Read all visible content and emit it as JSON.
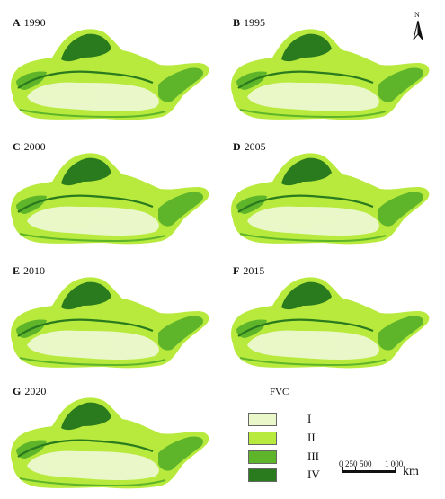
{
  "panels": [
    {
      "letter": "A",
      "year": "1990"
    },
    {
      "letter": "B",
      "year": "1995"
    },
    {
      "letter": "C",
      "year": "2000"
    },
    {
      "letter": "D",
      "year": "2005"
    },
    {
      "letter": "E",
      "year": "2010"
    },
    {
      "letter": "F",
      "year": "2015"
    },
    {
      "letter": "G",
      "year": "2020"
    }
  ],
  "north_arrow": {
    "label": "N"
  },
  "legend": {
    "title": "FVC",
    "classes": [
      {
        "label": "I",
        "color": "#eaf7c8"
      },
      {
        "label": "II",
        "color": "#b8ea3e"
      },
      {
        "label": "III",
        "color": "#5fb52a"
      },
      {
        "label": "IV",
        "color": "#2a7a1e"
      }
    ]
  },
  "scale_bar": {
    "ticks": [
      "0",
      "250",
      "500",
      "1 000"
    ],
    "unit": "km"
  }
}
